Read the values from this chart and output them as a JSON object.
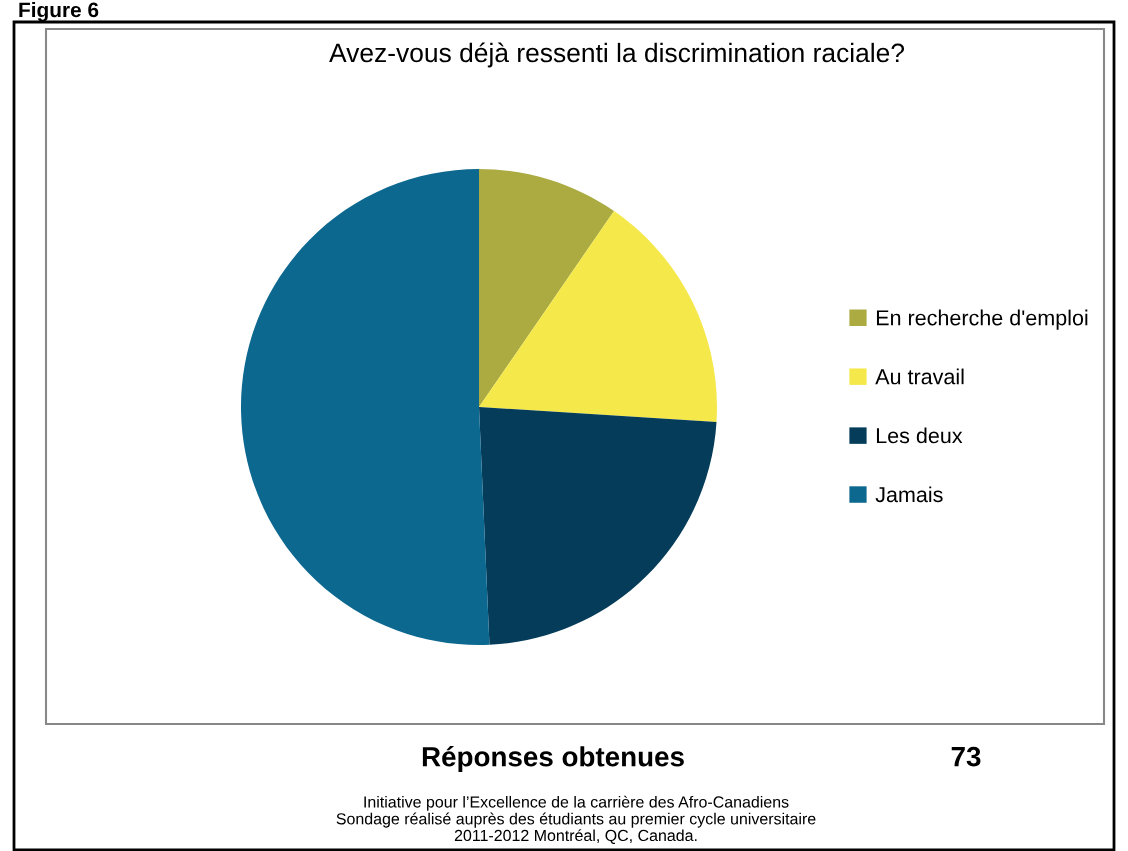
{
  "chart_data": {
    "type": "pie",
    "title": "Avez-vous déjà ressenti la discrimination raciale?",
    "categories": [
      "En recherche d'emploi",
      "Au travail",
      "Les deux",
      "Jamais"
    ],
    "values": [
      9.6,
      16.4,
      23.3,
      50.7
    ],
    "colors": [
      "#abab42",
      "#f5e84a",
      "#043c5a",
      "#0d6890"
    ],
    "legend": "right",
    "annotations": [
      "Figure 6",
      "Réponses obtenues",
      "73",
      "Initiative pour l’Excellence de la carrière des Afro-Canadiens\nSondage réalisé auprès des étudiants au premier cycle universitaire\n2011-2012 Montréal, QC, Canada."
    ]
  }
}
